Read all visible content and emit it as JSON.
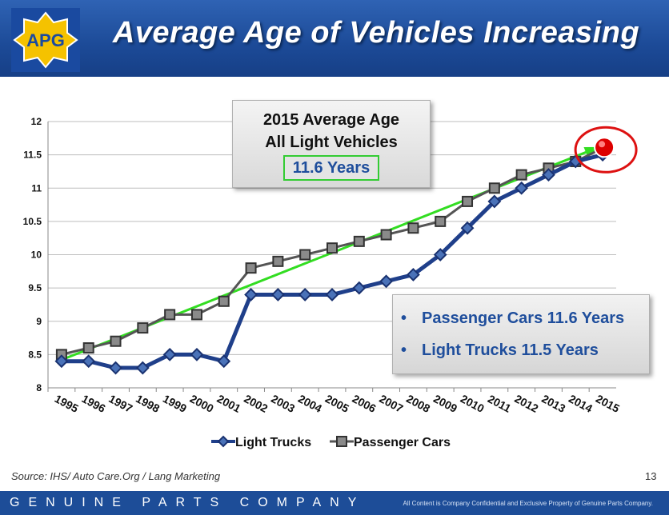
{
  "header": {
    "title": "Average Age of Vehicles Increasing",
    "logo_text": "APG"
  },
  "callout": {
    "line1": "2015 Average Age",
    "line2": "All Light Vehicles",
    "highlight": "11.6 Years"
  },
  "infobox": {
    "bullets": [
      "Passenger Cars 11.6 Years",
      "Light Trucks 11.5 Years"
    ]
  },
  "source": "Source: IHS/ Auto Care.Org / Lang Marketing",
  "page_number": "13",
  "footer": {
    "company": "GENUINE PARTS COMPANY",
    "confidential": "All Content is Company Confidential and Exclusive Property of Genuine Parts Company."
  },
  "chart_data": {
    "type": "line",
    "title": "",
    "xlabel": "",
    "ylabel": "",
    "categories": [
      "1995",
      "1996",
      "1997",
      "1998",
      "1999",
      "2000",
      "2001",
      "2002",
      "2003",
      "2004",
      "2005",
      "2006",
      "2007",
      "2008",
      "2009",
      "2010",
      "2011",
      "2012",
      "2013",
      "2014",
      "2015"
    ],
    "ylim": [
      8,
      12
    ],
    "yticks": [
      "8",
      "8.5",
      "9",
      "9.5",
      "10",
      "10.5",
      "11",
      "11.5",
      "12"
    ],
    "grid": true,
    "series": [
      {
        "name": "Light Trucks",
        "color": "#1f3f8a",
        "values": [
          8.4,
          8.4,
          8.3,
          8.3,
          8.5,
          8.5,
          8.4,
          9.4,
          9.4,
          9.4,
          9.4,
          9.5,
          9.6,
          9.7,
          10.0,
          10.4,
          10.8,
          11.0,
          11.2,
          11.4,
          11.5
        ]
      },
      {
        "name": "Passenger Cars",
        "color": "#555555",
        "values": [
          8.5,
          8.6,
          8.7,
          8.9,
          9.1,
          9.1,
          9.3,
          9.8,
          9.9,
          10.0,
          10.1,
          10.2,
          10.3,
          10.4,
          10.5,
          10.8,
          11.0,
          11.2,
          11.3,
          11.4,
          11.6
        ]
      }
    ],
    "trend": {
      "from": [
        "1995",
        8.42
      ],
      "to": [
        "2015",
        11.6
      ],
      "color": "#33dd22"
    },
    "highlight_point": {
      "category": "2015",
      "value": 11.6,
      "color": "#dd0000"
    },
    "legend": "bottom"
  }
}
